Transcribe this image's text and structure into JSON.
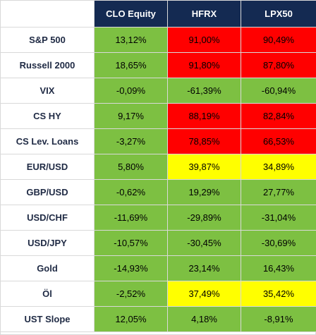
{
  "colors": {
    "header_bg": "#142a52",
    "header_text": "#ffffff",
    "green": "#7dc042",
    "red": "#ff0000",
    "yellow": "#ffff00",
    "label_text": "#1f2a44"
  },
  "table": {
    "headers": [
      "",
      "CLO Equity",
      "HFRX",
      "LPX50"
    ],
    "rows": [
      {
        "label": "S&P 500",
        "cells": [
          {
            "value": "13,12%",
            "color": "green"
          },
          {
            "value": "91,00%",
            "color": "red"
          },
          {
            "value": "90,49%",
            "color": "red"
          }
        ]
      },
      {
        "label": "Russell 2000",
        "cells": [
          {
            "value": "18,65%",
            "color": "green"
          },
          {
            "value": "91,80%",
            "color": "red"
          },
          {
            "value": "87,80%",
            "color": "red"
          }
        ]
      },
      {
        "label": "VIX",
        "cells": [
          {
            "value": "-0,09%",
            "color": "green"
          },
          {
            "value": "-61,39%",
            "color": "green"
          },
          {
            "value": "-60,94%",
            "color": "green"
          }
        ]
      },
      {
        "label": "CS HY",
        "cells": [
          {
            "value": "9,17%",
            "color": "green"
          },
          {
            "value": "88,19%",
            "color": "red"
          },
          {
            "value": "82,84%",
            "color": "red"
          }
        ]
      },
      {
        "label": "CS Lev. Loans",
        "cells": [
          {
            "value": "-3,27%",
            "color": "green"
          },
          {
            "value": "78,85%",
            "color": "red"
          },
          {
            "value": "66,53%",
            "color": "red"
          }
        ]
      },
      {
        "label": "EUR/USD",
        "cells": [
          {
            "value": "5,80%",
            "color": "green"
          },
          {
            "value": "39,87%",
            "color": "yellow"
          },
          {
            "value": "34,89%",
            "color": "yellow"
          }
        ]
      },
      {
        "label": "GBP/USD",
        "cells": [
          {
            "value": "-0,62%",
            "color": "green"
          },
          {
            "value": "19,29%",
            "color": "green"
          },
          {
            "value": "27,77%",
            "color": "green"
          }
        ]
      },
      {
        "label": "USD/CHF",
        "cells": [
          {
            "value": "-11,69%",
            "color": "green"
          },
          {
            "value": "-29,89%",
            "color": "green"
          },
          {
            "value": "-31,04%",
            "color": "green"
          }
        ]
      },
      {
        "label": "USD/JPY",
        "cells": [
          {
            "value": "-10,57%",
            "color": "green"
          },
          {
            "value": "-30,45%",
            "color": "green"
          },
          {
            "value": "-30,69%",
            "color": "green"
          }
        ]
      },
      {
        "label": "Gold",
        "cells": [
          {
            "value": "-14,93%",
            "color": "green"
          },
          {
            "value": "23,14%",
            "color": "green"
          },
          {
            "value": "16,43%",
            "color": "green"
          }
        ]
      },
      {
        "label": "Öl",
        "cells": [
          {
            "value": "-2,52%",
            "color": "green"
          },
          {
            "value": "37,49%",
            "color": "yellow"
          },
          {
            "value": "35,42%",
            "color": "yellow"
          }
        ]
      },
      {
        "label": "UST Slope",
        "cells": [
          {
            "value": "12,05%",
            "color": "green"
          },
          {
            "value": "4,18%",
            "color": "green"
          },
          {
            "value": "-8,91%",
            "color": "green"
          }
        ]
      }
    ]
  }
}
